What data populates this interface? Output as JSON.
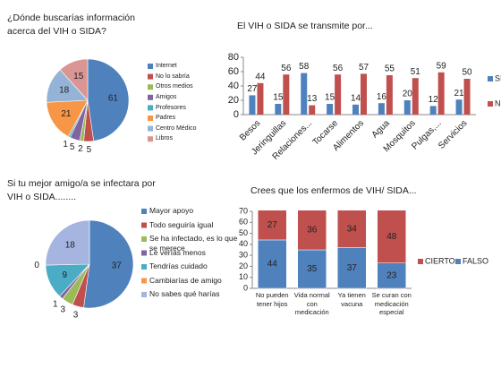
{
  "chart_data": [
    {
      "type": "pie",
      "title": "¿Dónde buscarías información acerca del VIH o SIDA?",
      "categories": [
        "Internet",
        "No lo sabría",
        "Otros medios",
        "Amigos",
        "Profesores",
        "Padres",
        "Centro Médico",
        "Libros"
      ],
      "values": [
        61,
        5,
        2,
        5,
        1,
        21,
        18,
        15
      ],
      "colors": [
        "#4f81bd",
        "#c0504d",
        "#9bbb59",
        "#8064a2",
        "#4bacc6",
        "#f79646",
        "#95b3d7",
        "#d99694"
      ]
    },
    {
      "type": "bar",
      "title": "El VIH o SIDA se transmite por...",
      "categories": [
        "Besos",
        "Jeringuillas",
        "Relaciones...",
        "Tocarse",
        "Alimentos",
        "Agua",
        "Mosquitos",
        "Pulgas,...",
        "Servicios"
      ],
      "series": [
        {
          "name": "SI",
          "color": "#4f81bd",
          "values": [
            27,
            15,
            58,
            15,
            14,
            16,
            20,
            12,
            21
          ]
        },
        {
          "name": "NO",
          "color": "#c0504d",
          "values": [
            44,
            56,
            13,
            56,
            57,
            55,
            51,
            59,
            50
          ]
        }
      ],
      "ylim": [
        0,
        80
      ],
      "yticks": [
        0,
        20,
        40,
        60,
        80
      ]
    },
    {
      "type": "pie",
      "title": "Si tu mejor amigo/a se infectara por VIH o SIDA........",
      "categories": [
        "Mayor apoyo",
        "Todo seguiría igual",
        "Se ha infectado, es lo que se merece",
        "Le verías menos",
        "Tendrías cuidado",
        "Cambiarías de amigo",
        "No sabes qué harías"
      ],
      "values": [
        37,
        3,
        3,
        1,
        9,
        0,
        18
      ],
      "colors": [
        "#4f81bd",
        "#c0504d",
        "#9bbb59",
        "#8064a2",
        "#4bacc6",
        "#f79646",
        "#a5b5e0"
      ]
    },
    {
      "type": "stacked_bar",
      "title": "Crees que los enfermos de VIH/ SIDA...",
      "categories": [
        "No pueden tener hijos",
        "Vida normal con medicación",
        "Ya tienen vacuna",
        "Se curan con medicación especial"
      ],
      "series": [
        {
          "name": "FALSO",
          "color": "#4f81bd",
          "values": [
            44,
            35,
            37,
            23
          ]
        },
        {
          "name": "CIERTO",
          "color": "#c0504d",
          "values": [
            27,
            36,
            34,
            48
          ]
        }
      ],
      "ylim": [
        0,
        70
      ],
      "yticks": [
        0,
        10,
        20,
        30,
        40,
        50,
        60,
        70
      ]
    }
  ]
}
